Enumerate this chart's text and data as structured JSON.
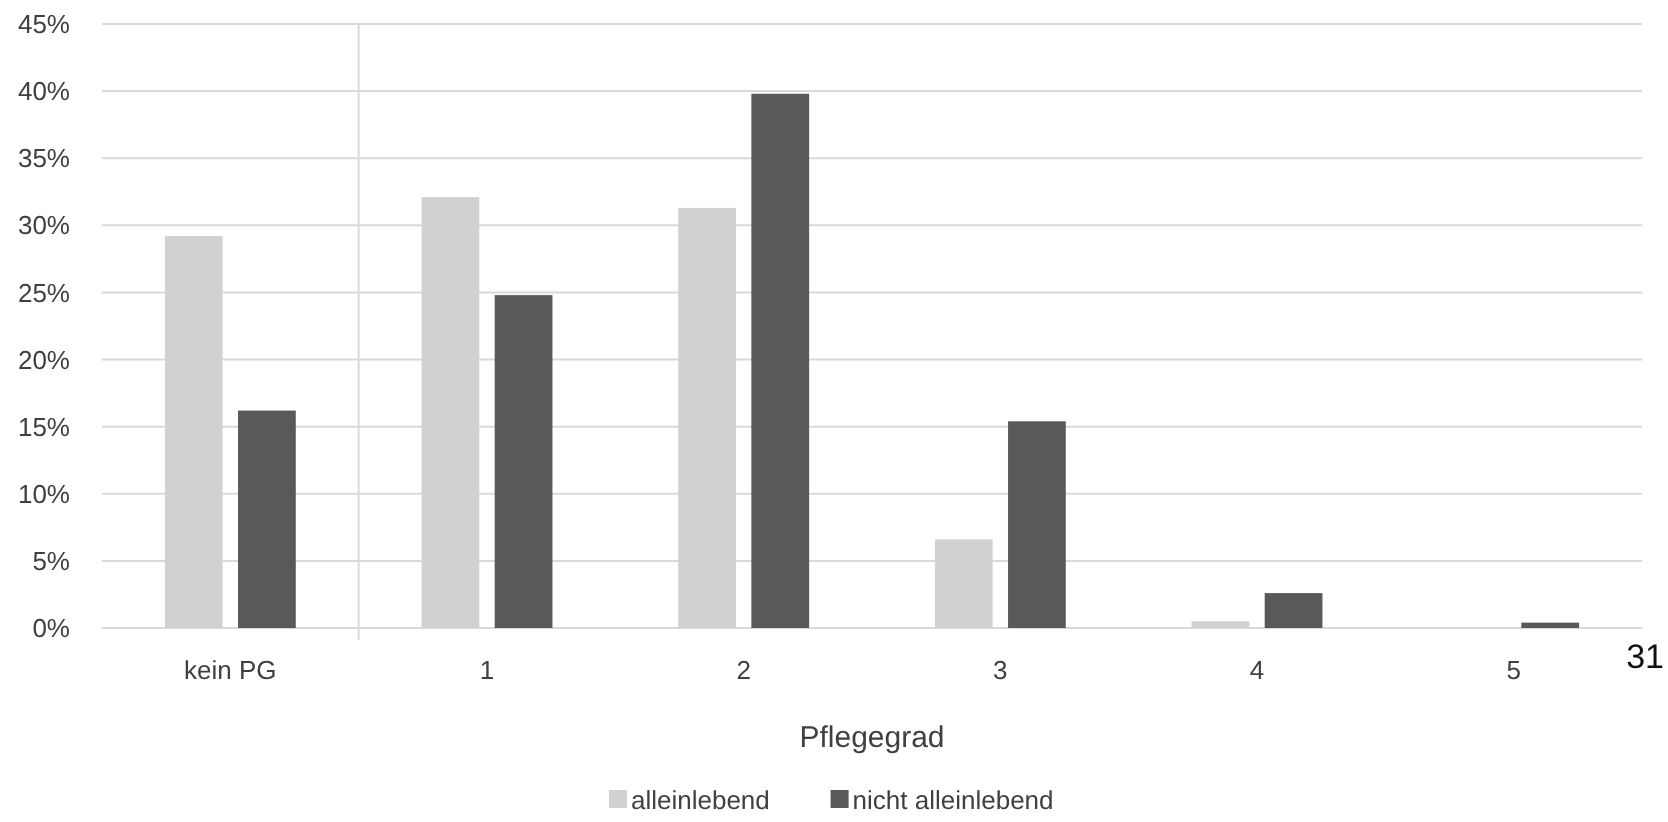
{
  "chart_data": {
    "type": "bar",
    "xlabel": "Pflegegrad",
    "categories": [
      "kein PG",
      "1",
      "2",
      "3",
      "4",
      "5"
    ],
    "series": [
      {
        "name": "alleinlebend",
        "color": "#d0d2d1",
        "values": [
          29.2,
          32.1,
          31.3,
          6.6,
          0.5,
          0
        ]
      },
      {
        "name": "nicht alleinlebend",
        "color": "#595959",
        "values": [
          16.2,
          24.8,
          39.8,
          15.4,
          2.6,
          0.4
        ]
      }
    ],
    "ylim": [
      0,
      45
    ],
    "yticks": [
      {
        "value": 0,
        "label": "0%"
      },
      {
        "value": 5,
        "label": "5%"
      },
      {
        "value": 10,
        "label": "10%"
      },
      {
        "value": 15,
        "label": "15%"
      },
      {
        "value": 20,
        "label": "20%"
      },
      {
        "value": 25,
        "label": "25%"
      },
      {
        "value": 30,
        "label": "30%"
      },
      {
        "value": 35,
        "label": "35%"
      },
      {
        "value": 40,
        "label": "40%"
      },
      {
        "value": 45,
        "label": "45%"
      }
    ],
    "grid": "y",
    "legend": "bottom",
    "annotations": [
      "31"
    ]
  }
}
